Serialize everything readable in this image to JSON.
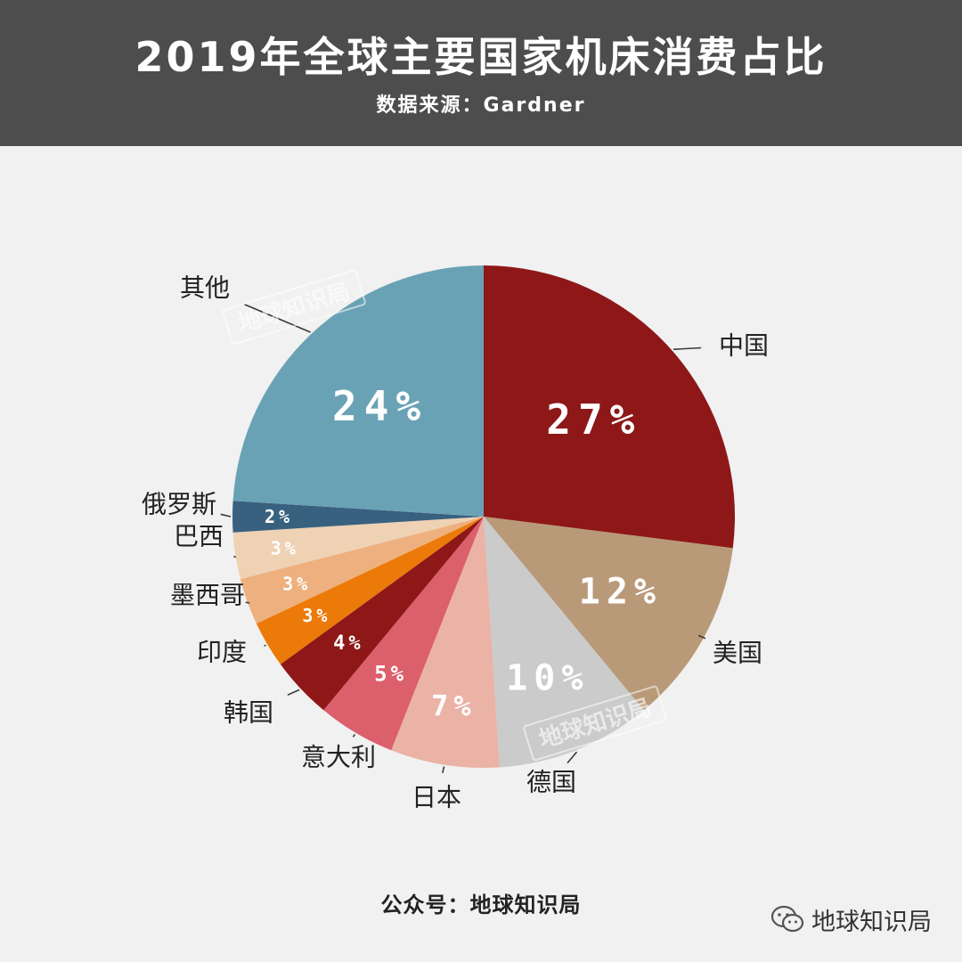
{
  "header": {
    "title": "2019年全球主要国家机床消费占比",
    "subtitle": "数据来源：Gardner"
  },
  "footer": {
    "account": "公众号：地球知识局"
  },
  "brand": {
    "name": "地球知识局",
    "icon": "wechat-icon"
  },
  "watermark": "地球知识局",
  "chart_data": {
    "type": "pie",
    "title": "2019年全球主要国家机床消费占比",
    "source": "数据来源：Gardner",
    "value_unit": "%",
    "slices": [
      {
        "label": "中国",
        "value": 27,
        "display": "27%",
        "color": "#8e1818"
      },
      {
        "label": "美国",
        "value": 12,
        "display": "12%",
        "color": "#b99a78"
      },
      {
        "label": "德国",
        "value": 10,
        "display": "10%",
        "color": "#cbcbcb"
      },
      {
        "label": "日本",
        "value": 7,
        "display": "7%",
        "color": "#ebb2a6"
      },
      {
        "label": "意大利",
        "value": 5,
        "display": "5%",
        "color": "#dc5f6c"
      },
      {
        "label": "韩国",
        "value": 4,
        "display": "4%",
        "color": "#8e1818"
      },
      {
        "label": "印度",
        "value": 3,
        "display": "3%",
        "color": "#ec7a08"
      },
      {
        "label": "墨西哥",
        "value": 3,
        "display": "3%",
        "color": "#eeb07e"
      },
      {
        "label": "巴西",
        "value": 3,
        "display": "3%",
        "color": "#efd1b4"
      },
      {
        "label": "俄罗斯",
        "value": 2,
        "display": "2%",
        "color": "#386180"
      },
      {
        "label": "其他",
        "value": 24,
        "display": "24%",
        "color": "#6aa2b5"
      }
    ]
  }
}
